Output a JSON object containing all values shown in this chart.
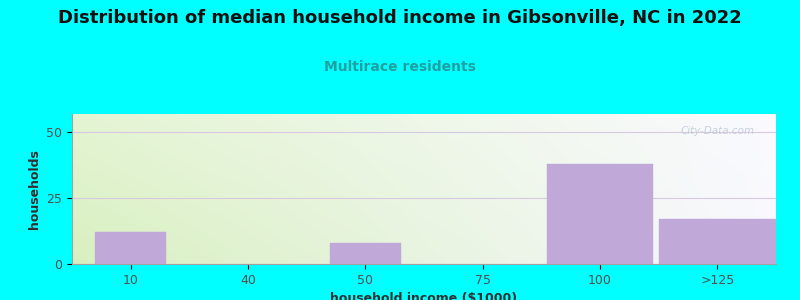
{
  "title": "Distribution of median household income in Gibsonville, NC in 2022",
  "subtitle": "Multirace residents",
  "xlabel": "household income ($1000)",
  "ylabel": "households",
  "background_color": "#00FFFF",
  "plot_bg_color_left": "#d8f0c0",
  "plot_bg_color_right": "#f8f8ff",
  "bar_color": "#c0a8d8",
  "bar_edge_color": "#c0a8d8",
  "categories": [
    "10",
    "40",
    "50",
    "75",
    "100",
    ">125"
  ],
  "values": [
    12,
    0,
    8,
    0,
    38,
    17
  ],
  "ylim": [
    0,
    57
  ],
  "yticks": [
    0,
    25,
    50
  ],
  "grid_color": "#d8c8e0",
  "watermark": "City-Data.com",
  "title_fontsize": 13,
  "subtitle_fontsize": 10,
  "axis_label_fontsize": 9,
  "tick_fontsize": 9
}
